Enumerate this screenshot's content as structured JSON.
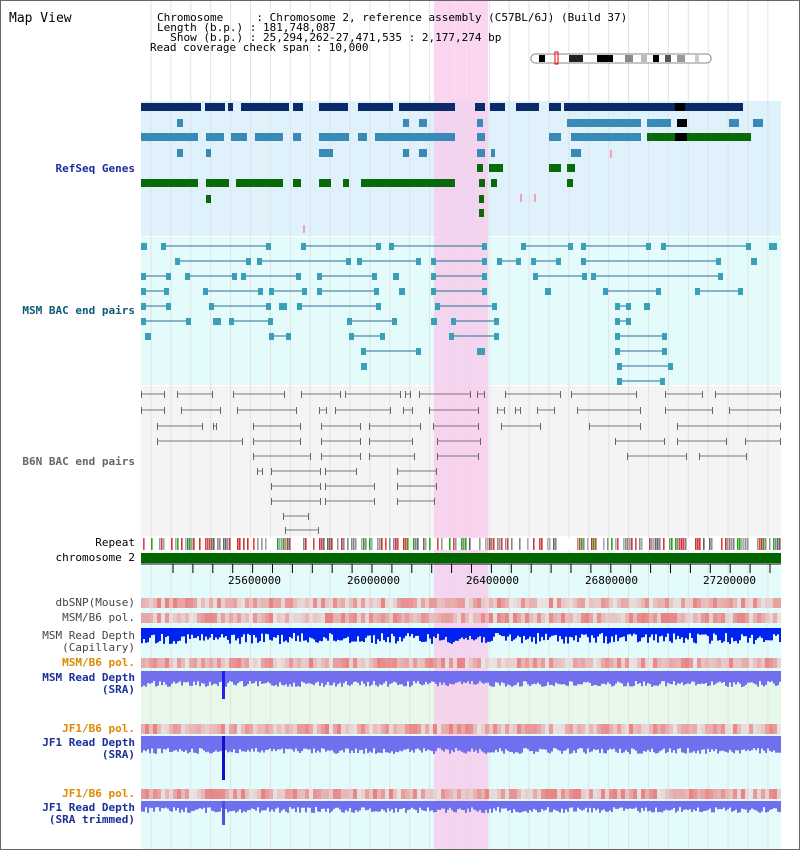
{
  "app": {
    "title": "Map View"
  },
  "header": {
    "lines": [
      "Chromosome     : Chromosome 2, reference assembly (C57BL/6J) (Build 37)",
      "Length (b.p.) : 181,748,087",
      "  Show (b.p.) : 25,294,262-27,471,535 : 2,177,274 bp",
      "Read coverage check span : 10,000"
    ]
  },
  "tracks": {
    "refseq": {
      "label": "RefSeq Genes",
      "color": "#1a2f9c"
    },
    "msm_bac": {
      "label": "MSM BAC end pairs",
      "color": "#0b5a7a"
    },
    "b6n_bac": {
      "label": "B6N BAC end pairs",
      "color": "#666666"
    },
    "repeat": {
      "label": "Repeat"
    },
    "chromosome": {
      "label": "chromosome 2",
      "color": "#006600"
    },
    "dbsnp": {
      "label": "dbSNP(Mouse)"
    },
    "msm_b6_pol_1": {
      "label": "MSM/B6 pol."
    },
    "msm_depth_cap": {
      "label": "MSM Read Depth",
      "label2": "(Capillary)"
    },
    "msm_b6_pol_2": {
      "label": "MSM/B6 pol.",
      "color": "#e08800"
    },
    "msm_depth_sra": {
      "label": "MSM Read Depth",
      "label2": "(SRA)",
      "color": "#1a2f9c"
    },
    "jf1_b6_pol_1": {
      "label": "JF1/B6 pol.",
      "color": "#e08800"
    },
    "jf1_depth_sra": {
      "label": "JF1 Read Depth",
      "label2": "(SRA)",
      "color": "#1a2f9c"
    },
    "jf1_b6_pol_2": {
      "label": "JF1/B6 pol.",
      "color": "#e08800"
    },
    "jf1_depth_trim": {
      "label": "JF1 Read Depth",
      "label2": "(SRA trimmed)",
      "color": "#1a2f9c"
    }
  },
  "axis": {
    "ticks": [
      "25600000",
      "26000000",
      "26400000",
      "26800000",
      "27200000"
    ]
  },
  "highlight": {
    "color": "#f8c8ec"
  },
  "colors": {
    "refseq_dark": "#0a2a6a",
    "refseq_mid": "#3a8ab8",
    "refseq_green": "#0a6a0a",
    "msm_line": "#2a6e96",
    "b6n_line": "#777777",
    "depth_capillary": "#0022ee",
    "depth_sra": "#7070ee",
    "pol": "#e84040"
  }
}
